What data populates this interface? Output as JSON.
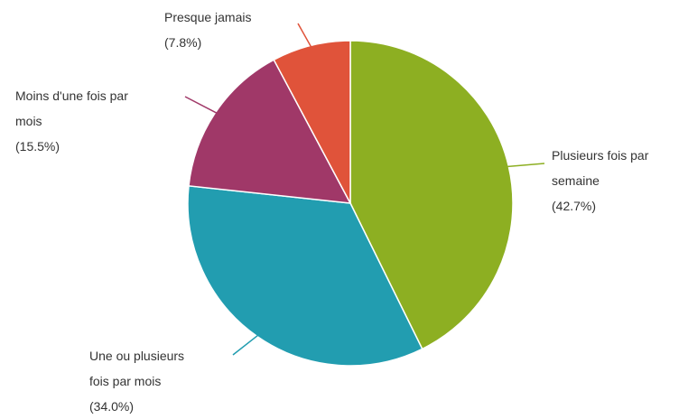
{
  "chart_data": {
    "type": "pie",
    "title": "",
    "start_angle_deg": 0,
    "direction": "clockwise",
    "slices": [
      {
        "category": "Plusieurs fois par semaine",
        "value": 42.7,
        "label_lines": [
          "Plusieurs fois par",
          "semaine",
          "(42.7%)"
        ],
        "color": "#8daf22"
      },
      {
        "category": "Une ou plusieurs fois par mois",
        "value": 34.0,
        "label_lines": [
          "Une ou plusieurs",
          "fois par mois",
          "(34.0%)"
        ],
        "color": "#229db0"
      },
      {
        "category": "Moins d'une fois par mois",
        "value": 15.5,
        "label_lines": [
          "Moins d'une fois par",
          "mois",
          "(15.5%)"
        ],
        "color": "#a03868"
      },
      {
        "category": "Presque jamais",
        "value": 7.8,
        "label_lines": [
          "Presque jamais",
          "(7.8%)"
        ],
        "color": "#e0533a"
      }
    ]
  }
}
